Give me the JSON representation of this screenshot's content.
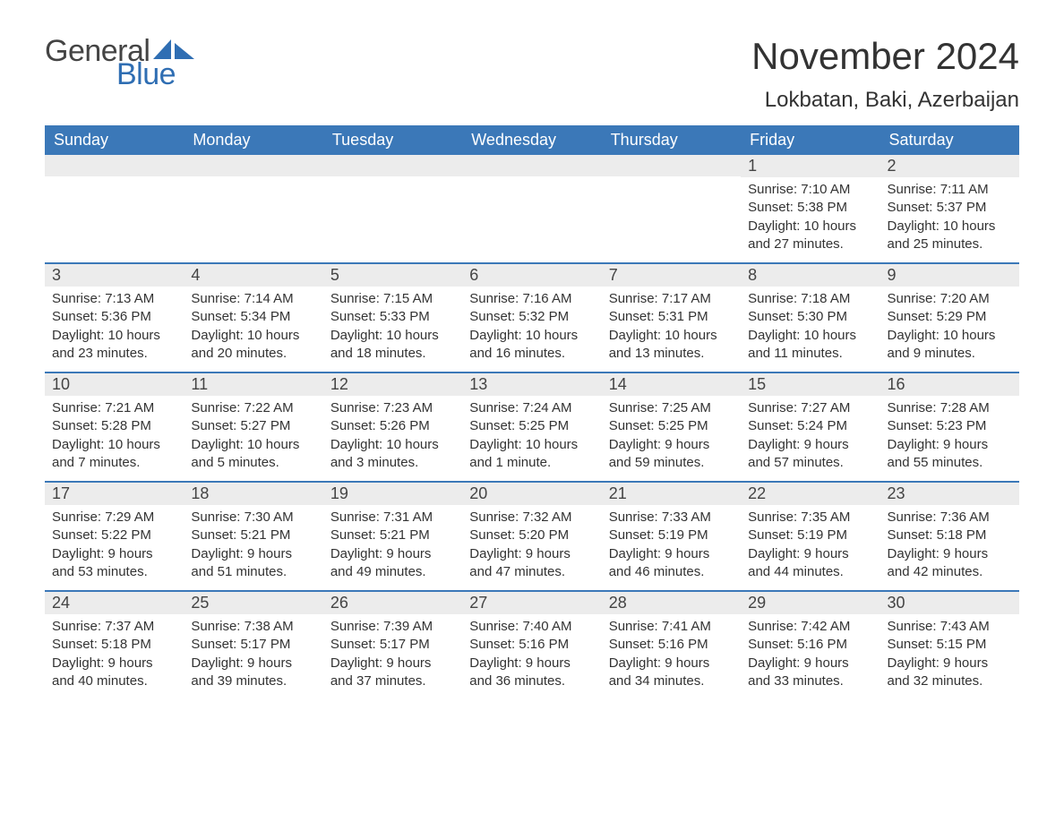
{
  "logo": {
    "text1": "General",
    "text2": "Blue",
    "shape_color": "#2f6eb3"
  },
  "title": "November 2024",
  "location": "Lokbatan, Baki, Azerbaijan",
  "colors": {
    "header_bg": "#3b78b8",
    "header_text": "#ffffff",
    "daynum_bg": "#ececec",
    "week_divider": "#3b78b8",
    "body_text": "#333333"
  },
  "day_headers": [
    "Sunday",
    "Monday",
    "Tuesday",
    "Wednesday",
    "Thursday",
    "Friday",
    "Saturday"
  ],
  "weeks": [
    [
      {
        "empty": true
      },
      {
        "empty": true
      },
      {
        "empty": true
      },
      {
        "empty": true
      },
      {
        "empty": true
      },
      {
        "day": "1",
        "sunrise": "Sunrise: 7:10 AM",
        "sunset": "Sunset: 5:38 PM",
        "daylight1": "Daylight: 10 hours",
        "daylight2": "and 27 minutes."
      },
      {
        "day": "2",
        "sunrise": "Sunrise: 7:11 AM",
        "sunset": "Sunset: 5:37 PM",
        "daylight1": "Daylight: 10 hours",
        "daylight2": "and 25 minutes."
      }
    ],
    [
      {
        "day": "3",
        "sunrise": "Sunrise: 7:13 AM",
        "sunset": "Sunset: 5:36 PM",
        "daylight1": "Daylight: 10 hours",
        "daylight2": "and 23 minutes."
      },
      {
        "day": "4",
        "sunrise": "Sunrise: 7:14 AM",
        "sunset": "Sunset: 5:34 PM",
        "daylight1": "Daylight: 10 hours",
        "daylight2": "and 20 minutes."
      },
      {
        "day": "5",
        "sunrise": "Sunrise: 7:15 AM",
        "sunset": "Sunset: 5:33 PM",
        "daylight1": "Daylight: 10 hours",
        "daylight2": "and 18 minutes."
      },
      {
        "day": "6",
        "sunrise": "Sunrise: 7:16 AM",
        "sunset": "Sunset: 5:32 PM",
        "daylight1": "Daylight: 10 hours",
        "daylight2": "and 16 minutes."
      },
      {
        "day": "7",
        "sunrise": "Sunrise: 7:17 AM",
        "sunset": "Sunset: 5:31 PM",
        "daylight1": "Daylight: 10 hours",
        "daylight2": "and 13 minutes."
      },
      {
        "day": "8",
        "sunrise": "Sunrise: 7:18 AM",
        "sunset": "Sunset: 5:30 PM",
        "daylight1": "Daylight: 10 hours",
        "daylight2": "and 11 minutes."
      },
      {
        "day": "9",
        "sunrise": "Sunrise: 7:20 AM",
        "sunset": "Sunset: 5:29 PM",
        "daylight1": "Daylight: 10 hours",
        "daylight2": "and 9 minutes."
      }
    ],
    [
      {
        "day": "10",
        "sunrise": "Sunrise: 7:21 AM",
        "sunset": "Sunset: 5:28 PM",
        "daylight1": "Daylight: 10 hours",
        "daylight2": "and 7 minutes."
      },
      {
        "day": "11",
        "sunrise": "Sunrise: 7:22 AM",
        "sunset": "Sunset: 5:27 PM",
        "daylight1": "Daylight: 10 hours",
        "daylight2": "and 5 minutes."
      },
      {
        "day": "12",
        "sunrise": "Sunrise: 7:23 AM",
        "sunset": "Sunset: 5:26 PM",
        "daylight1": "Daylight: 10 hours",
        "daylight2": "and 3 minutes."
      },
      {
        "day": "13",
        "sunrise": "Sunrise: 7:24 AM",
        "sunset": "Sunset: 5:25 PM",
        "daylight1": "Daylight: 10 hours",
        "daylight2": "and 1 minute."
      },
      {
        "day": "14",
        "sunrise": "Sunrise: 7:25 AM",
        "sunset": "Sunset: 5:25 PM",
        "daylight1": "Daylight: 9 hours",
        "daylight2": "and 59 minutes."
      },
      {
        "day": "15",
        "sunrise": "Sunrise: 7:27 AM",
        "sunset": "Sunset: 5:24 PM",
        "daylight1": "Daylight: 9 hours",
        "daylight2": "and 57 minutes."
      },
      {
        "day": "16",
        "sunrise": "Sunrise: 7:28 AM",
        "sunset": "Sunset: 5:23 PM",
        "daylight1": "Daylight: 9 hours",
        "daylight2": "and 55 minutes."
      }
    ],
    [
      {
        "day": "17",
        "sunrise": "Sunrise: 7:29 AM",
        "sunset": "Sunset: 5:22 PM",
        "daylight1": "Daylight: 9 hours",
        "daylight2": "and 53 minutes."
      },
      {
        "day": "18",
        "sunrise": "Sunrise: 7:30 AM",
        "sunset": "Sunset: 5:21 PM",
        "daylight1": "Daylight: 9 hours",
        "daylight2": "and 51 minutes."
      },
      {
        "day": "19",
        "sunrise": "Sunrise: 7:31 AM",
        "sunset": "Sunset: 5:21 PM",
        "daylight1": "Daylight: 9 hours",
        "daylight2": "and 49 minutes."
      },
      {
        "day": "20",
        "sunrise": "Sunrise: 7:32 AM",
        "sunset": "Sunset: 5:20 PM",
        "daylight1": "Daylight: 9 hours",
        "daylight2": "and 47 minutes."
      },
      {
        "day": "21",
        "sunrise": "Sunrise: 7:33 AM",
        "sunset": "Sunset: 5:19 PM",
        "daylight1": "Daylight: 9 hours",
        "daylight2": "and 46 minutes."
      },
      {
        "day": "22",
        "sunrise": "Sunrise: 7:35 AM",
        "sunset": "Sunset: 5:19 PM",
        "daylight1": "Daylight: 9 hours",
        "daylight2": "and 44 minutes."
      },
      {
        "day": "23",
        "sunrise": "Sunrise: 7:36 AM",
        "sunset": "Sunset: 5:18 PM",
        "daylight1": "Daylight: 9 hours",
        "daylight2": "and 42 minutes."
      }
    ],
    [
      {
        "day": "24",
        "sunrise": "Sunrise: 7:37 AM",
        "sunset": "Sunset: 5:18 PM",
        "daylight1": "Daylight: 9 hours",
        "daylight2": "and 40 minutes."
      },
      {
        "day": "25",
        "sunrise": "Sunrise: 7:38 AM",
        "sunset": "Sunset: 5:17 PM",
        "daylight1": "Daylight: 9 hours",
        "daylight2": "and 39 minutes."
      },
      {
        "day": "26",
        "sunrise": "Sunrise: 7:39 AM",
        "sunset": "Sunset: 5:17 PM",
        "daylight1": "Daylight: 9 hours",
        "daylight2": "and 37 minutes."
      },
      {
        "day": "27",
        "sunrise": "Sunrise: 7:40 AM",
        "sunset": "Sunset: 5:16 PM",
        "daylight1": "Daylight: 9 hours",
        "daylight2": "and 36 minutes."
      },
      {
        "day": "28",
        "sunrise": "Sunrise: 7:41 AM",
        "sunset": "Sunset: 5:16 PM",
        "daylight1": "Daylight: 9 hours",
        "daylight2": "and 34 minutes."
      },
      {
        "day": "29",
        "sunrise": "Sunrise: 7:42 AM",
        "sunset": "Sunset: 5:16 PM",
        "daylight1": "Daylight: 9 hours",
        "daylight2": "and 33 minutes."
      },
      {
        "day": "30",
        "sunrise": "Sunrise: 7:43 AM",
        "sunset": "Sunset: 5:15 PM",
        "daylight1": "Daylight: 9 hours",
        "daylight2": "and 32 minutes."
      }
    ]
  ]
}
